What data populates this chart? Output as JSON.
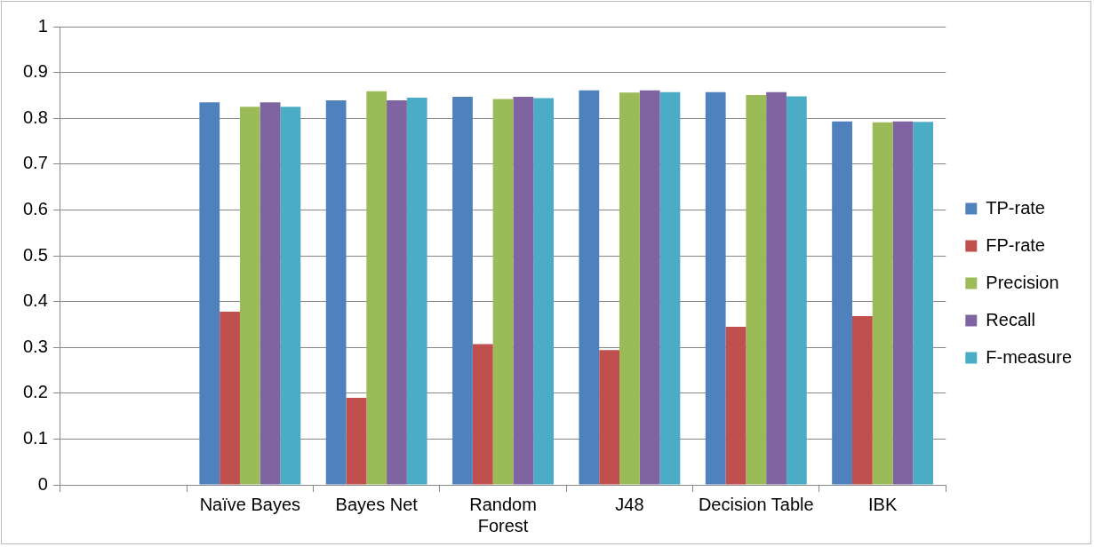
{
  "chart_data": {
    "type": "bar",
    "categories": [
      null,
      "Naïve Bayes",
      "Bayes Net",
      "Random Forest",
      "J48",
      "Decision Table",
      "IBK"
    ],
    "series": [
      {
        "name": "TP-rate",
        "color": "#4f81bd",
        "values": [
          null,
          0.835,
          0.839,
          0.847,
          0.861,
          0.857,
          0.793
        ]
      },
      {
        "name": "FP-rate",
        "color": "#c0504d",
        "values": [
          null,
          0.378,
          0.19,
          0.307,
          0.294,
          0.345,
          0.368
        ]
      },
      {
        "name": "Precision",
        "color": "#9bbb59",
        "values": [
          null,
          0.825,
          0.859,
          0.842,
          0.856,
          0.851,
          0.791
        ]
      },
      {
        "name": "Recall",
        "color": "#8064a2",
        "values": [
          null,
          0.835,
          0.839,
          0.847,
          0.861,
          0.857,
          0.793
        ]
      },
      {
        "name": "F-measure",
        "color": "#4bacc6",
        "values": [
          null,
          0.825,
          0.845,
          0.844,
          0.857,
          0.848,
          0.792
        ]
      }
    ],
    "ylim": [
      0,
      1
    ],
    "yticks": [
      0,
      0.1,
      0.2,
      0.3,
      0.4,
      0.5,
      0.6,
      0.7,
      0.8,
      0.9,
      1
    ],
    "grid": "y",
    "legend": "right"
  }
}
